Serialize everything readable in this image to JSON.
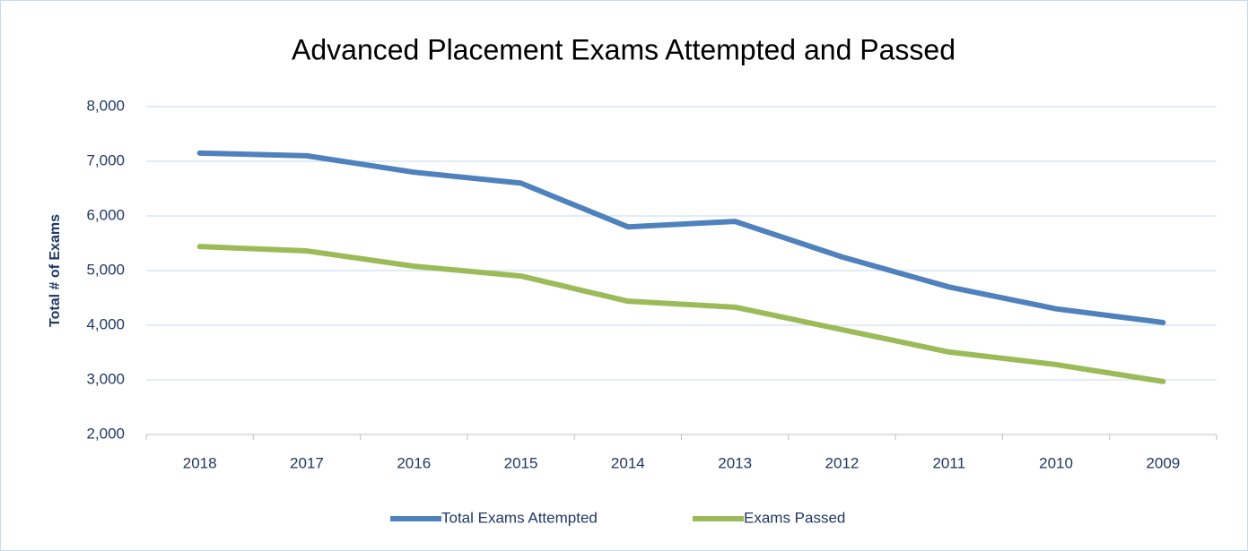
{
  "chart_data": {
    "type": "line",
    "title": "Advanced Placement Exams Attempted and Passed",
    "y_axis_label": "Total # of Exams",
    "categories": [
      "2018",
      "2017",
      "2016",
      "2015",
      "2014",
      "2013",
      "2012",
      "2011",
      "2010",
      "2009"
    ],
    "series": [
      {
        "name": "Total Exams Attempted",
        "color": "#4f81bd",
        "values": [
          7150,
          7100,
          6800,
          6600,
          5800,
          5900,
          5250,
          4700,
          4300,
          4050
        ]
      },
      {
        "name": "Exams Passed",
        "color": "#9bbb59",
        "values": [
          5440,
          5360,
          5080,
          4900,
          4440,
          4330,
          3920,
          3510,
          3280,
          2970
        ]
      }
    ],
    "ylim": [
      2000,
      8000
    ],
    "yticks": [
      {
        "value": 2000,
        "label": "2,000"
      },
      {
        "value": 3000,
        "label": "3,000"
      },
      {
        "value": 4000,
        "label": "4,000"
      },
      {
        "value": 5000,
        "label": "5,000"
      },
      {
        "value": 6000,
        "label": "6,000"
      },
      {
        "value": 7000,
        "label": "7,000"
      },
      {
        "value": 8000,
        "label": "8,000"
      }
    ],
    "grid": true,
    "legend": "bottom"
  }
}
